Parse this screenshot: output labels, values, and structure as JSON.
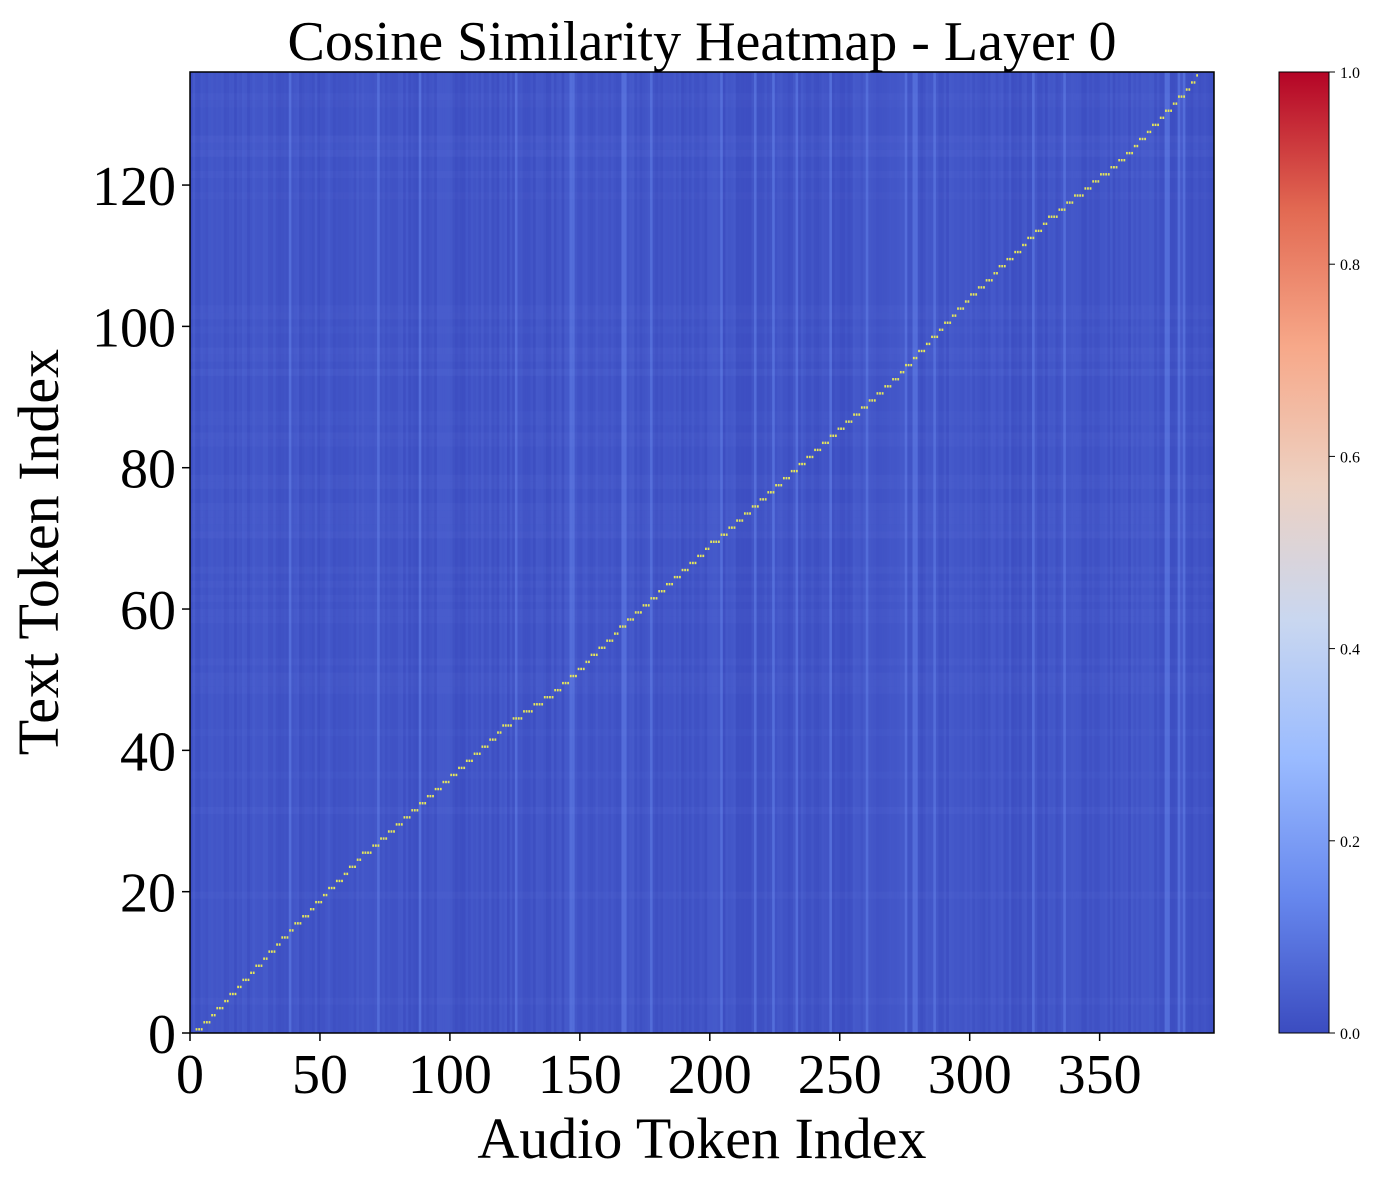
{
  "chart_data": {
    "type": "heatmap",
    "title": "Cosine Similarity Heatmap - Layer 0",
    "xlabel": "Audio Token Index",
    "ylabel": "Text Token Index",
    "xlim": [
      0,
      394
    ],
    "ylim": [
      0,
      136
    ],
    "x_ticks": [
      0,
      50,
      100,
      150,
      200,
      250,
      300,
      350
    ],
    "y_ticks": [
      0,
      20,
      40,
      60,
      80,
      100,
      120
    ],
    "colormap": "coolwarm",
    "colorbar": {
      "range": [
        0.0,
        1.0
      ],
      "ticks": [
        "0.0",
        "0.2",
        "0.4",
        "0.6",
        "0.8",
        "1.0"
      ],
      "colors": [
        "#3b4cc0",
        "#6788ee",
        "#9abbff",
        "#c9d7f0",
        "#edd1c2",
        "#f7a889",
        "#e26952",
        "#b40426"
      ]
    },
    "background_value": 0.02,
    "alignment_path": {
      "color": "#e6e65a",
      "description_points": [
        [
          2,
          0
        ],
        [
          20,
          7
        ],
        [
          40,
          15
        ],
        [
          66,
          25
        ],
        [
          88,
          32
        ],
        [
          120,
          43
        ],
        [
          140,
          48
        ],
        [
          165,
          57
        ],
        [
          200,
          69
        ],
        [
          240,
          82
        ],
        [
          270,
          92
        ],
        [
          300,
          104
        ],
        [
          330,
          115
        ],
        [
          360,
          124
        ],
        [
          387,
          135
        ]
      ]
    }
  }
}
